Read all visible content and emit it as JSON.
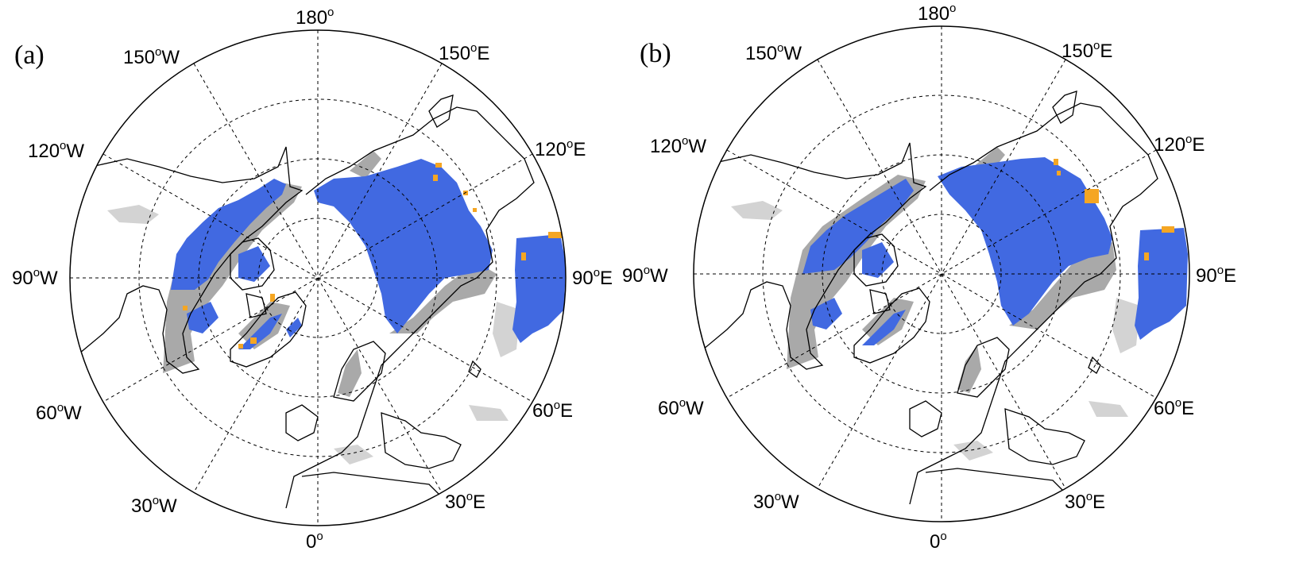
{
  "panels": [
    {
      "id": "a",
      "label": "(a)",
      "lon_labels": {
        "l180": {
          "num": "180",
          "deg": "o",
          "suffix": ""
        },
        "l150E": {
          "num": "150",
          "deg": "o",
          "suffix": "E"
        },
        "l120E": {
          "num": "120",
          "deg": "o",
          "suffix": "E"
        },
        "l90E": {
          "num": "90",
          "deg": "o",
          "suffix": "E"
        },
        "l60E": {
          "num": "60",
          "deg": "o",
          "suffix": "E"
        },
        "l30E": {
          "num": "30",
          "deg": "o",
          "suffix": "E"
        },
        "l0": {
          "num": "0",
          "deg": "o",
          "suffix": ""
        },
        "l30W": {
          "num": "30",
          "deg": "o",
          "suffix": "W"
        },
        "l60W": {
          "num": "60",
          "deg": "o",
          "suffix": "W"
        },
        "l90W": {
          "num": "90",
          "deg": "o",
          "suffix": "W"
        },
        "l120W": {
          "num": "120",
          "deg": "o",
          "suffix": "W"
        },
        "l150W": {
          "num": "150",
          "deg": "o",
          "suffix": "W"
        }
      }
    },
    {
      "id": "b",
      "label": "(b)",
      "lon_labels": {
        "l180": {
          "num": "180",
          "deg": "o",
          "suffix": ""
        },
        "l150E": {
          "num": "150",
          "deg": "o",
          "suffix": "E"
        },
        "l120E": {
          "num": "120",
          "deg": "o",
          "suffix": "E"
        },
        "l90E": {
          "num": "90",
          "deg": "o",
          "suffix": "E"
        },
        "l60E": {
          "num": "60",
          "deg": "o",
          "suffix": "E"
        },
        "l30E": {
          "num": "30",
          "deg": "o",
          "suffix": "E"
        },
        "l0": {
          "num": "0",
          "deg": "o",
          "suffix": ""
        },
        "l30W": {
          "num": "30",
          "deg": "o",
          "suffix": "W"
        },
        "l60W": {
          "num": "60",
          "deg": "o",
          "suffix": "W"
        },
        "l90W": {
          "num": "90",
          "deg": "o",
          "suffix": "W"
        },
        "l120W": {
          "num": "120",
          "deg": "o",
          "suffix": "W"
        },
        "l150W": {
          "num": "150",
          "deg": "o",
          "suffix": "W"
        }
      }
    }
  ],
  "colors": {
    "land_outline": "#000000",
    "grid": "#000000",
    "gray_region": "#a9a9a9",
    "light_gray_region": "#d3d3d3",
    "blue_region": "#4169e1",
    "orange_region": "#f5a623"
  }
}
